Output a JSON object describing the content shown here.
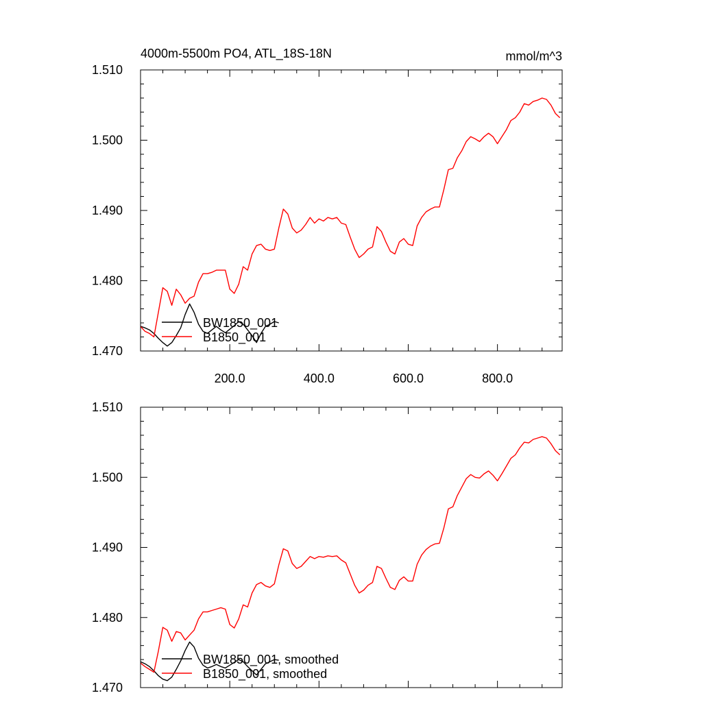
{
  "chart_data": [
    {
      "type": "line",
      "title": "4000m-5500m PO4, ATL_18S-18N",
      "units": "mmol/m^3",
      "xlim": [
        0,
        945
      ],
      "ylim": [
        1.47,
        1.51
      ],
      "x_ticks": [
        200,
        400,
        600,
        800
      ],
      "x_tick_labels": [
        "200.0",
        "400.0",
        "600.0",
        "800.0"
      ],
      "y_ticks": [
        1.47,
        1.48,
        1.49,
        1.5,
        1.51
      ],
      "y_tick_labels": [
        "1.470",
        "1.480",
        "1.490",
        "1.500",
        "1.510"
      ],
      "legend_position": "lower-left",
      "series": [
        {
          "name": "BW1850_001",
          "color": "#000000",
          "x": [
            0,
            10,
            20,
            30,
            40,
            50,
            60,
            70,
            80,
            90,
            100,
            110,
            120,
            130,
            140,
            150,
            160,
            170,
            180,
            190,
            200,
            210,
            220,
            230,
            240,
            250,
            260,
            270,
            280,
            290,
            300,
            310
          ],
          "y": [
            1.4735,
            1.4733,
            1.473,
            1.4725,
            1.4718,
            1.4712,
            1.4707,
            1.4712,
            1.4722,
            1.4733,
            1.4752,
            1.4767,
            1.4755,
            1.4738,
            1.4728,
            1.4725,
            1.473,
            1.4735,
            1.473,
            1.4726,
            1.4731,
            1.4736,
            1.4742,
            1.4738,
            1.473,
            1.4722,
            1.4712,
            1.4725,
            1.4735,
            1.4738,
            1.4742,
            1.474
          ]
        },
        {
          "name": "B1850_001",
          "color": "#ff0000",
          "x": [
            0,
            10,
            20,
            30,
            40,
            50,
            60,
            70,
            80,
            90,
            100,
            110,
            120,
            130,
            140,
            150,
            160,
            170,
            180,
            190,
            200,
            210,
            220,
            230,
            240,
            250,
            260,
            270,
            280,
            290,
            300,
            310,
            320,
            330,
            340,
            350,
            360,
            370,
            380,
            390,
            400,
            410,
            420,
            430,
            440,
            450,
            460,
            470,
            480,
            490,
            500,
            510,
            520,
            530,
            540,
            550,
            560,
            570,
            580,
            590,
            600,
            610,
            620,
            630,
            640,
            650,
            660,
            670,
            680,
            690,
            700,
            710,
            720,
            730,
            740,
            750,
            760,
            770,
            780,
            790,
            800,
            810,
            820,
            830,
            840,
            850,
            860,
            870,
            880,
            890,
            900,
            910,
            920,
            930,
            940
          ],
          "y": [
            1.4735,
            1.4728,
            1.4725,
            1.472,
            1.4755,
            1.479,
            1.4785,
            1.4765,
            1.4788,
            1.478,
            1.4768,
            1.4775,
            1.4778,
            1.4798,
            1.481,
            1.481,
            1.4812,
            1.4815,
            1.4815,
            1.4815,
            1.4788,
            1.4782,
            1.4795,
            1.482,
            1.4815,
            1.4838,
            1.485,
            1.4852,
            1.4845,
            1.4843,
            1.4845,
            1.4875,
            1.4902,
            1.4895,
            1.4875,
            1.4868,
            1.4872,
            1.488,
            1.489,
            1.4882,
            1.4888,
            1.4885,
            1.489,
            1.4888,
            1.489,
            1.4882,
            1.488,
            1.4862,
            1.4845,
            1.4833,
            1.4838,
            1.4845,
            1.4848,
            1.4877,
            1.487,
            1.4855,
            1.4842,
            1.4838,
            1.4855,
            1.486,
            1.4852,
            1.485,
            1.4878,
            1.489,
            1.4898,
            1.4902,
            1.4905,
            1.4905,
            1.493,
            1.4958,
            1.496,
            1.4975,
            1.4985,
            1.4998,
            1.5005,
            1.5002,
            1.4998,
            1.5005,
            1.501,
            1.5005,
            1.4995,
            1.5005,
            1.5015,
            1.5028,
            1.5032,
            1.504,
            1.5052,
            1.505,
            1.5055,
            1.5057,
            1.506,
            1.5058,
            1.505,
            1.5038,
            1.5032
          ]
        }
      ]
    },
    {
      "type": "line",
      "title": "",
      "units": "",
      "xlim": [
        0,
        945
      ],
      "ylim": [
        1.47,
        1.51
      ],
      "x_ticks": [
        200,
        400,
        600,
        800
      ],
      "x_tick_labels": [],
      "y_ticks": [
        1.47,
        1.48,
        1.49,
        1.5,
        1.51
      ],
      "y_tick_labels": [
        "1.470",
        "1.480",
        "1.490",
        "1.500",
        "1.510"
      ],
      "legend_position": "lower-left",
      "series": [
        {
          "name": "BW1850_001, smoothed",
          "color": "#000000",
          "x": [
            0,
            10,
            20,
            30,
            40,
            50,
            60,
            70,
            80,
            90,
            100,
            110,
            120,
            130,
            140,
            150,
            160,
            170,
            180,
            190,
            200,
            210,
            220,
            230,
            240,
            250,
            260,
            270,
            280,
            290,
            300,
            310
          ],
          "y": [
            1.4737,
            1.4734,
            1.473,
            1.4724,
            1.4717,
            1.4712,
            1.471,
            1.4715,
            1.4726,
            1.4738,
            1.4753,
            1.4765,
            1.4758,
            1.4742,
            1.4732,
            1.4728,
            1.473,
            1.4733,
            1.473,
            1.4728,
            1.4732,
            1.4736,
            1.474,
            1.4737,
            1.473,
            1.4724,
            1.4718,
            1.4726,
            1.4734,
            1.4737,
            1.474,
            1.4739
          ]
        },
        {
          "name": "B1850_001, smoothed",
          "color": "#ff0000",
          "x": [
            0,
            10,
            20,
            30,
            40,
            50,
            60,
            70,
            80,
            90,
            100,
            110,
            120,
            130,
            140,
            150,
            160,
            170,
            180,
            190,
            200,
            210,
            220,
            230,
            240,
            250,
            260,
            270,
            280,
            290,
            300,
            310,
            320,
            330,
            340,
            350,
            360,
            370,
            380,
            390,
            400,
            410,
            420,
            430,
            440,
            450,
            460,
            470,
            480,
            490,
            500,
            510,
            520,
            530,
            540,
            550,
            560,
            570,
            580,
            590,
            600,
            610,
            620,
            630,
            640,
            650,
            660,
            670,
            680,
            690,
            700,
            710,
            720,
            730,
            740,
            750,
            760,
            770,
            780,
            790,
            800,
            810,
            820,
            830,
            840,
            850,
            860,
            870,
            880,
            890,
            900,
            910,
            920,
            930,
            940
          ],
          "y": [
            1.4735,
            1.473,
            1.4726,
            1.4722,
            1.4752,
            1.4786,
            1.4782,
            1.4766,
            1.478,
            1.4778,
            1.4768,
            1.4775,
            1.4782,
            1.4798,
            1.4808,
            1.4808,
            1.481,
            1.4812,
            1.4814,
            1.4812,
            1.479,
            1.4785,
            1.4798,
            1.4818,
            1.4815,
            1.4835,
            1.4847,
            1.485,
            1.4845,
            1.4843,
            1.4848,
            1.4875,
            1.4898,
            1.4895,
            1.4877,
            1.487,
            1.4873,
            1.488,
            1.4887,
            1.4884,
            1.4887,
            1.4886,
            1.4888,
            1.4887,
            1.4888,
            1.4882,
            1.4878,
            1.4862,
            1.4846,
            1.4835,
            1.4839,
            1.4846,
            1.485,
            1.4873,
            1.487,
            1.4856,
            1.4843,
            1.484,
            1.4853,
            1.4858,
            1.4852,
            1.4852,
            1.4876,
            1.4889,
            1.4897,
            1.4902,
            1.4905,
            1.4906,
            1.4928,
            1.4955,
            1.4958,
            1.4974,
            1.4986,
            1.4998,
            1.5004,
            1.5,
            1.4999,
            1.5005,
            1.5009,
            1.5003,
            1.4995,
            1.5005,
            1.5016,
            1.5027,
            1.5032,
            1.5042,
            1.505,
            1.5049,
            1.5054,
            1.5056,
            1.5058,
            1.5056,
            1.5048,
            1.5038,
            1.5032
          ]
        }
      ]
    }
  ]
}
